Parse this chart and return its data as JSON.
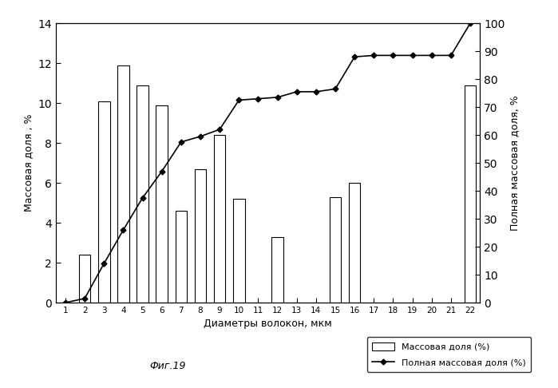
{
  "categories": [
    1,
    2,
    3,
    4,
    5,
    6,
    7,
    8,
    9,
    10,
    11,
    12,
    13,
    14,
    15,
    16,
    17,
    18,
    19,
    20,
    21,
    22
  ],
  "bar_values": [
    0.0,
    2.4,
    10.1,
    11.9,
    10.9,
    9.9,
    4.6,
    6.7,
    8.4,
    5.2,
    0.0,
    3.3,
    0.0,
    0.0,
    5.3,
    6.0,
    0.0,
    0.0,
    0.0,
    0.0,
    0.0,
    10.9
  ],
  "cumulative_values": [
    0.0,
    1.5,
    14.0,
    26.0,
    37.5,
    47.0,
    57.5,
    59.5,
    62.0,
    72.5,
    73.0,
    73.5,
    75.5,
    75.5,
    76.5,
    88.0,
    88.5,
    88.5,
    88.5,
    88.5,
    88.5,
    100.0
  ],
  "xlabel": "Диаметры волокон, мкм",
  "ylabel_left": "Массовая доля , %",
  "ylabel_right": "Полная массовая доля, %",
  "legend_bar": "Массовая доля (%)",
  "legend_line": "Полная массовая доля (%)",
  "caption": "Фиг.19",
  "ylim_left": [
    0,
    14
  ],
  "ylim_right": [
    0,
    100
  ],
  "yticks_left": [
    0,
    2,
    4,
    6,
    8,
    10,
    12,
    14
  ],
  "yticks_right": [
    0,
    10,
    20,
    30,
    40,
    50,
    60,
    70,
    80,
    90,
    100
  ],
  "bar_color": "white",
  "bar_edgecolor": "black",
  "line_color": "black",
  "background_color": "white",
  "figsize": [
    6.99,
    4.86
  ],
  "dpi": 100
}
